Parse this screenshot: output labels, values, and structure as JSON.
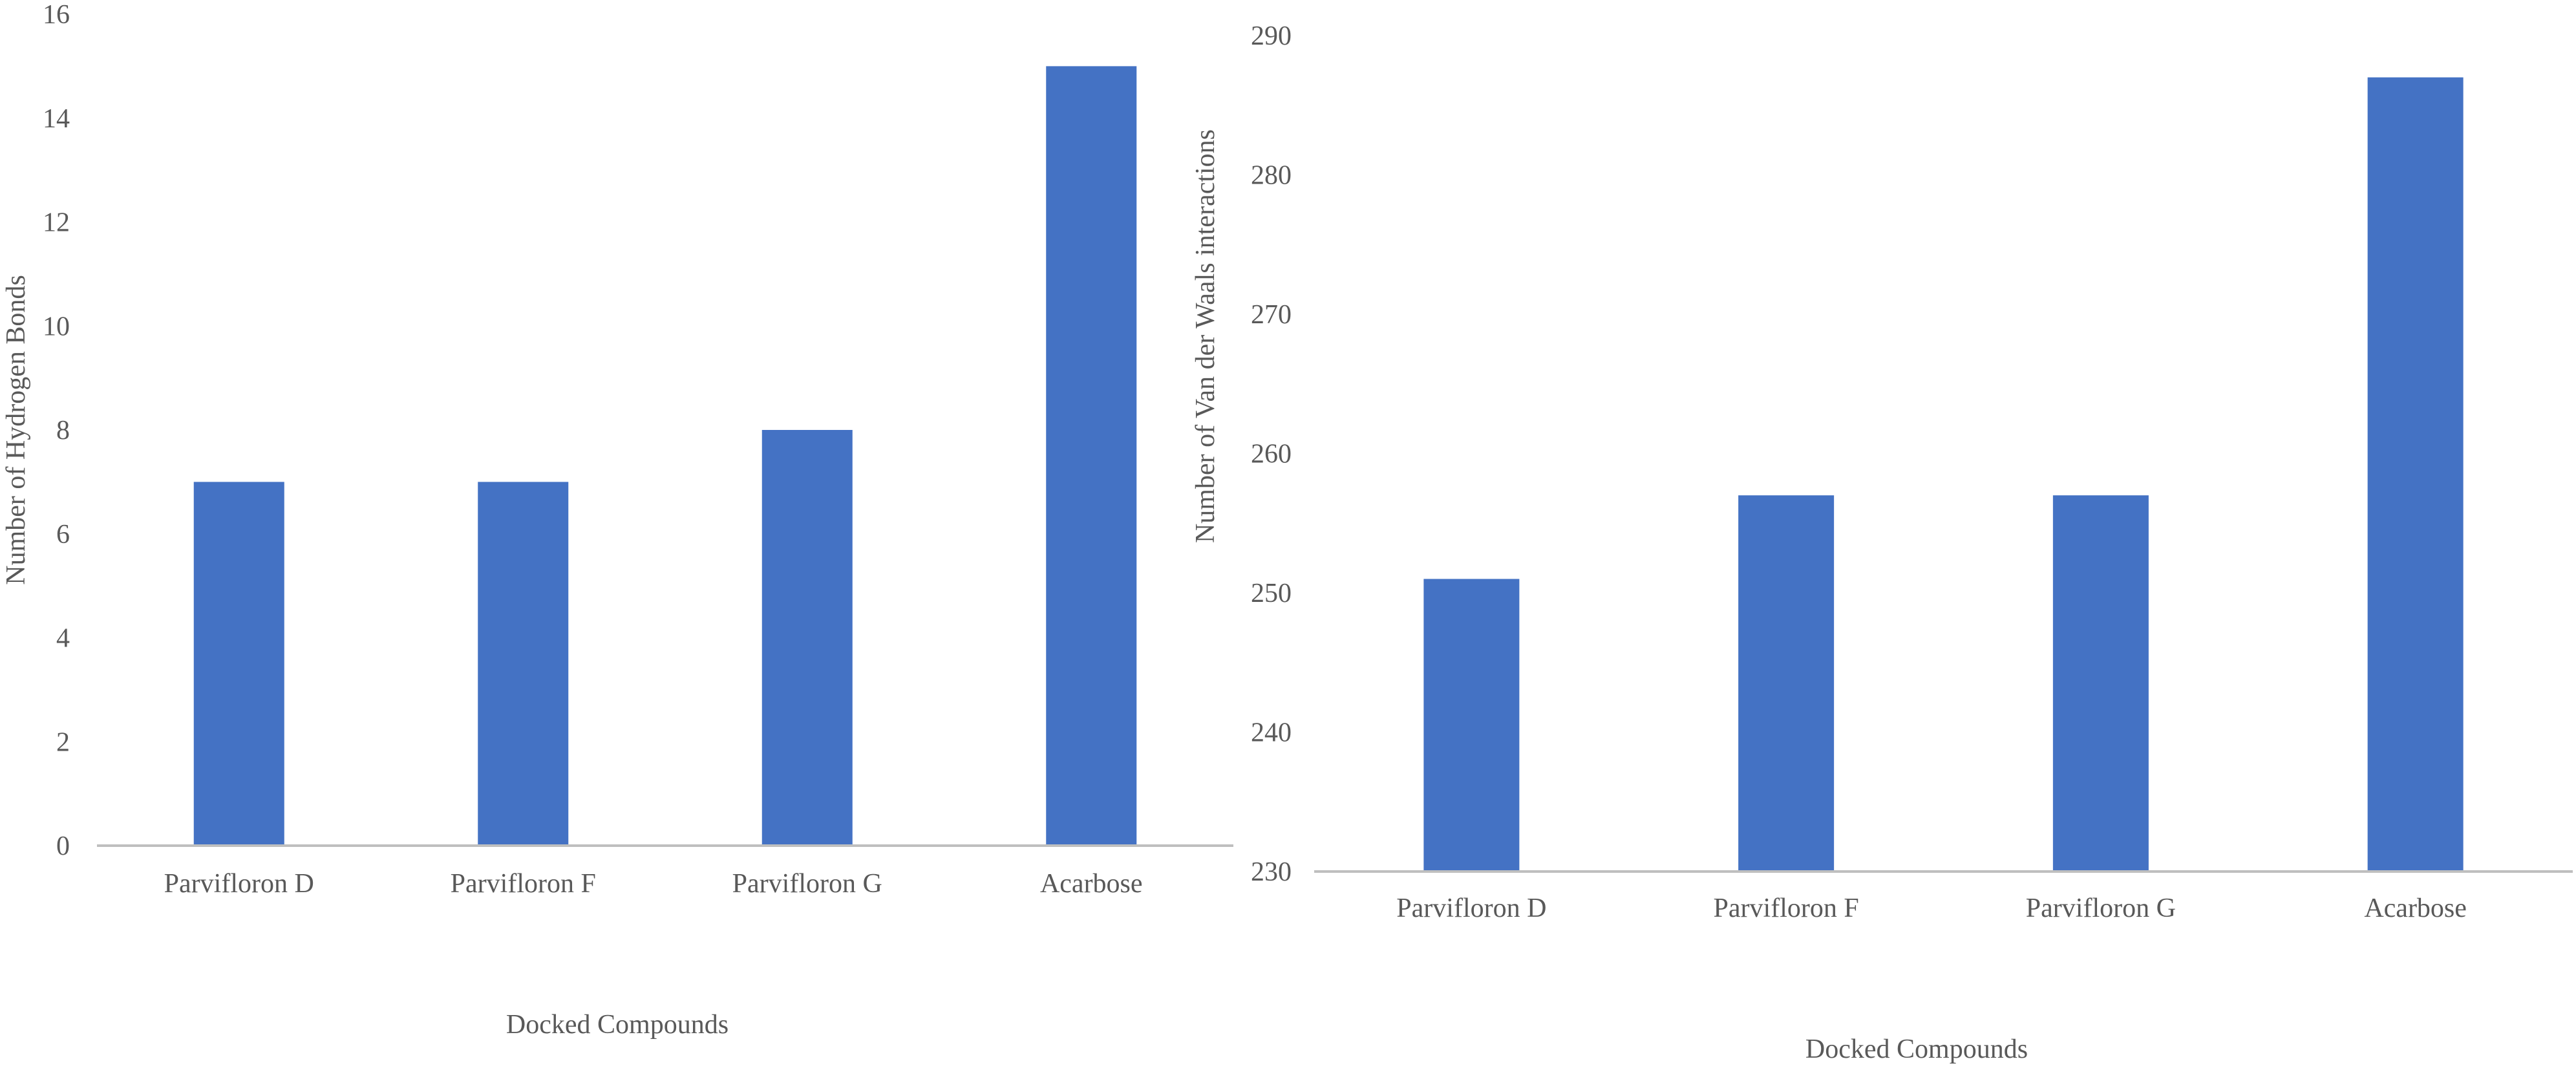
{
  "chart_data": [
    {
      "type": "bar",
      "categories": [
        "Parvifloron D",
        "Parvifloron F",
        "Parvifloron G",
        "Acarbose"
      ],
      "values": [
        7,
        7,
        8,
        15
      ],
      "title": "",
      "xlabel": "Docked Compounds",
      "ylabel": "Number of Hydrogen Bonds",
      "ylim": [
        0,
        16
      ],
      "yticks": [
        "0",
        "2",
        "4",
        "6",
        "8",
        "10",
        "12",
        "14",
        "16"
      ],
      "grid": false,
      "legend": "none",
      "bar_color": "#4472C4"
    },
    {
      "type": "bar",
      "categories": [
        "Parvifloron D",
        "Parvifloron F",
        "Parvifloron G",
        "Acarbose"
      ],
      "values": [
        251,
        257,
        257,
        287
      ],
      "title": "",
      "xlabel": "Docked Compounds",
      "ylabel": "Number of Van der Waals interactions",
      "ylim": [
        230,
        290
      ],
      "yticks": [
        "230",
        "240",
        "250",
        "260",
        "270",
        "280",
        "290"
      ],
      "grid": false,
      "legend": "none",
      "bar_color": "#4472C4"
    }
  ]
}
